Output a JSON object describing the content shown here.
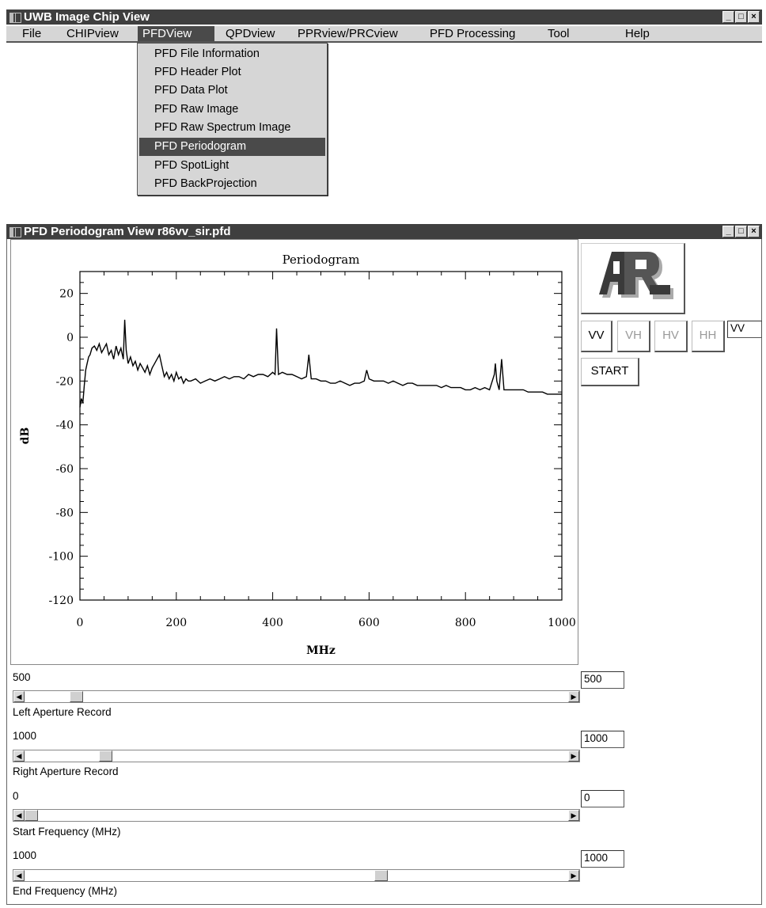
{
  "main_window": {
    "title": "UWB Image Chip View",
    "menu": [
      "File",
      "CHIPview",
      "PFDView",
      "QPDview",
      "PPRview/PRCview",
      "PFD Processing",
      "Tool",
      "Help"
    ],
    "active_menu": "PFDView"
  },
  "dropdown": {
    "items": [
      "PFD File Information",
      "PFD Header Plot",
      "PFD Data Plot",
      "PFD Raw Image",
      "PFD Raw Spectrum Image",
      "PFD Periodogram",
      "PFD SpotLight",
      "PFD BackProjection"
    ],
    "highlighted": "PFD Periodogram"
  },
  "periodogram_window": {
    "title": "PFD Periodogram View r86vv_sir.pfd",
    "pol_buttons": [
      {
        "label": "VV",
        "enabled": true
      },
      {
        "label": "VH",
        "enabled": false
      },
      {
        "label": "HV",
        "enabled": false
      },
      {
        "label": "HH",
        "enabled": false
      }
    ],
    "pol_value": "VV",
    "start_label": "START",
    "sliders": [
      {
        "label": "Left Aperture Record",
        "value_text": "500",
        "box_value": "500",
        "fraction": 0.085
      },
      {
        "label": "Right Aperture Record",
        "value_text": "1000",
        "box_value": "1000",
        "fraction": 0.14
      },
      {
        "label": "Start Frequency (MHz)",
        "value_text": "0",
        "box_value": "0",
        "fraction": 0.0
      },
      {
        "label": "End Frequency (MHz)",
        "value_text": "1000",
        "box_value": "1000",
        "fraction": 0.66
      }
    ]
  },
  "chart_data": {
    "type": "line",
    "title": "Periodogram",
    "xlabel": "MHz",
    "ylabel": "dB",
    "xlim": [
      0,
      1000
    ],
    "ylim": [
      -120,
      30
    ],
    "xticks": [
      0,
      200,
      400,
      600,
      800,
      1000
    ],
    "yticks": [
      20,
      0,
      -20,
      -40,
      -60,
      -80,
      -100,
      -120
    ],
    "grid": false,
    "series": [
      {
        "x": [
          0,
          3,
          6,
          9,
          12,
          15,
          18,
          21,
          25,
          30,
          35,
          40,
          45,
          50,
          55,
          60,
          65,
          70,
          75,
          80,
          85,
          90,
          93,
          96,
          100,
          105,
          110,
          115,
          120,
          125,
          130,
          135,
          140,
          145,
          150,
          155,
          160,
          165,
          170,
          175,
          180,
          185,
          190,
          195,
          200,
          205,
          210,
          215,
          220,
          225,
          230,
          240,
          250,
          260,
          270,
          280,
          290,
          300,
          310,
          320,
          330,
          340,
          350,
          360,
          370,
          380,
          390,
          400,
          405,
          408,
          412,
          420,
          430,
          440,
          450,
          460,
          470,
          475,
          480,
          490,
          500,
          510,
          520,
          530,
          540,
          550,
          560,
          570,
          580,
          590,
          595,
          600,
          610,
          620,
          630,
          640,
          650,
          660,
          670,
          680,
          690,
          700,
          710,
          720,
          730,
          740,
          750,
          760,
          770,
          780,
          790,
          800,
          810,
          820,
          830,
          840,
          850,
          860,
          862,
          865,
          870,
          875,
          880,
          890,
          900,
          910,
          920,
          930,
          940,
          950,
          960,
          970,
          980,
          990,
          1000
        ],
        "y": [
          -32,
          -28,
          -30,
          -22,
          -15,
          -12,
          -9,
          -8,
          -5,
          -4,
          -6,
          -3,
          -7,
          -5,
          -3,
          -8,
          -6,
          -10,
          -4,
          -8,
          -5,
          -10,
          8,
          -6,
          -12,
          -9,
          -13,
          -11,
          -15,
          -12,
          -14,
          -16,
          -13,
          -17,
          -14,
          -12,
          -10,
          -8,
          -13,
          -18,
          -16,
          -19,
          -17,
          -20,
          -16,
          -19,
          -18,
          -21,
          -19,
          -20,
          -20,
          -19,
          -21,
          -20,
          -19,
          -20,
          -19,
          -18,
          -19,
          -18,
          -18,
          -19,
          -17,
          -18,
          -17,
          -17,
          -18,
          -16,
          -17,
          4,
          -17,
          -16,
          -17,
          -17,
          -18,
          -19,
          -18,
          -8,
          -19,
          -19,
          -20,
          -20,
          -21,
          -21,
          -20,
          -21,
          -22,
          -21,
          -21,
          -20,
          -15,
          -19,
          -20,
          -20,
          -20,
          -21,
          -20,
          -21,
          -22,
          -21,
          -21,
          -22,
          -22,
          -22,
          -22,
          -22,
          -23,
          -22,
          -23,
          -23,
          -23,
          -24,
          -24,
          -23,
          -24,
          -23,
          -24,
          -17,
          -12,
          -20,
          -24,
          -10,
          -24,
          -24,
          -24,
          -24,
          -24,
          -25,
          -25,
          -25,
          -25,
          -26,
          -26,
          -26,
          -26
        ]
      }
    ]
  }
}
